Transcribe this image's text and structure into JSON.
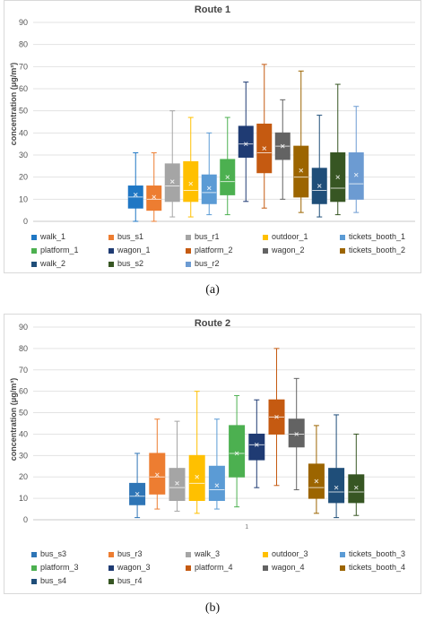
{
  "panels": [
    {
      "label": "(a)",
      "chart_data": {
        "type": "box",
        "title": "Route 1",
        "ylabel": "concentration (μg/m³)",
        "ylim": [
          0,
          90
        ],
        "yticks": [
          0,
          10,
          20,
          30,
          40,
          50,
          60,
          70,
          80,
          90
        ],
        "grid": true,
        "legend_position": "bottom",
        "series": [
          {
            "name": "walk_1",
            "color": "#1f77c4",
            "min": 0,
            "q1": 6,
            "median": 11,
            "q3": 16,
            "max": 31,
            "mean": 12
          },
          {
            "name": "bus_s1",
            "color": "#ed7d31",
            "min": 0,
            "q1": 5,
            "median": 10,
            "q3": 16,
            "max": 31,
            "mean": 11
          },
          {
            "name": "bus_r1",
            "color": "#a5a5a5",
            "min": 2,
            "q1": 9,
            "median": 16,
            "q3": 26,
            "max": 50,
            "mean": 18
          },
          {
            "name": "outdoor_1",
            "color": "#ffc000",
            "min": 2,
            "q1": 9,
            "median": 14,
            "q3": 27,
            "max": 47,
            "mean": 17
          },
          {
            "name": "tickets_booth_1",
            "color": "#5b9bd5",
            "min": 3,
            "q1": 8,
            "median": 13,
            "q3": 21,
            "max": 40,
            "mean": 15
          },
          {
            "name": "platform_1",
            "color": "#4cb050",
            "min": 3,
            "q1": 12,
            "median": 18,
            "q3": 28,
            "max": 47,
            "mean": 20
          },
          {
            "name": "wagon_1",
            "color": "#1f3b73",
            "min": 9,
            "q1": 29,
            "median": 35,
            "q3": 43,
            "max": 63,
            "mean": 35
          },
          {
            "name": "platform_2",
            "color": "#c55a11",
            "min": 6,
            "q1": 22,
            "median": 31,
            "q3": 44,
            "max": 71,
            "mean": 33
          },
          {
            "name": "wagon_2",
            "color": "#636363",
            "min": 10,
            "q1": 28,
            "median": 34,
            "q3": 40,
            "max": 55,
            "mean": 34
          },
          {
            "name": "tickets_booth_2",
            "color": "#9c6500",
            "min": 4,
            "q1": 11,
            "median": 20,
            "q3": 34,
            "max": 68,
            "mean": 23
          },
          {
            "name": "walk_2",
            "color": "#1f4e79",
            "min": 2,
            "q1": 8,
            "median": 14,
            "q3": 24,
            "max": 48,
            "mean": 16
          },
          {
            "name": "bus_s2",
            "color": "#375623",
            "min": 3,
            "q1": 9,
            "median": 15,
            "q3": 31,
            "max": 62,
            "mean": 20
          },
          {
            "name": "bus_r2",
            "color": "#6c9bd2",
            "min": 4,
            "q1": 10,
            "median": 17,
            "q3": 31,
            "max": 52,
            "mean": 21
          }
        ]
      }
    },
    {
      "label": "(b)",
      "chart_data": {
        "type": "box",
        "title": "Route 2",
        "ylabel": "concentration (μg/m³)",
        "ylim": [
          0,
          90
        ],
        "yticks": [
          0,
          10,
          20,
          30,
          40,
          50,
          60,
          70,
          80,
          90
        ],
        "grid": true,
        "legend_position": "bottom",
        "x_tick_label": "1",
        "series": [
          {
            "name": "bus_s3",
            "color": "#2e75b6",
            "min": 1,
            "q1": 7,
            "median": 11,
            "q3": 17,
            "max": 31,
            "mean": 12
          },
          {
            "name": "bus_r3",
            "color": "#ed7d31",
            "min": 5,
            "q1": 12,
            "median": 20,
            "q3": 31,
            "max": 47,
            "mean": 21
          },
          {
            "name": "walk_3",
            "color": "#a5a5a5",
            "min": 4,
            "q1": 9,
            "median": 15,
            "q3": 24,
            "max": 46,
            "mean": 17
          },
          {
            "name": "outdoor_3",
            "color": "#ffc000",
            "min": 3,
            "q1": 9,
            "median": 17,
            "q3": 30,
            "max": 60,
            "mean": 20
          },
          {
            "name": "tickets_booth_3",
            "color": "#5b9bd5",
            "min": 5,
            "q1": 9,
            "median": 14,
            "q3": 25,
            "max": 47,
            "mean": 16
          },
          {
            "name": "platform_3",
            "color": "#4cb050",
            "min": 6,
            "q1": 20,
            "median": 31,
            "q3": 44,
            "max": 58,
            "mean": 31
          },
          {
            "name": "wagon_3",
            "color": "#1f3b73",
            "min": 15,
            "q1": 28,
            "median": 35,
            "q3": 40,
            "max": 56,
            "mean": 35
          },
          {
            "name": "platform_4",
            "color": "#c55a11",
            "min": 16,
            "q1": 40,
            "median": 48,
            "q3": 56,
            "max": 80,
            "mean": 48
          },
          {
            "name": "wagon_4",
            "color": "#636363",
            "min": 14,
            "q1": 34,
            "median": 40,
            "q3": 47,
            "max": 66,
            "mean": 40
          },
          {
            "name": "tickets_booth_4",
            "color": "#9c6500",
            "min": 3,
            "q1": 10,
            "median": 15,
            "q3": 26,
            "max": 44,
            "mean": 18
          },
          {
            "name": "bus_s4",
            "color": "#1f4e79",
            "min": 1,
            "q1": 8,
            "median": 13,
            "q3": 24,
            "max": 49,
            "mean": 15
          },
          {
            "name": "bus_r4",
            "color": "#375623",
            "min": 2,
            "q1": 8,
            "median": 13,
            "q3": 21,
            "max": 40,
            "mean": 15
          }
        ]
      }
    }
  ]
}
